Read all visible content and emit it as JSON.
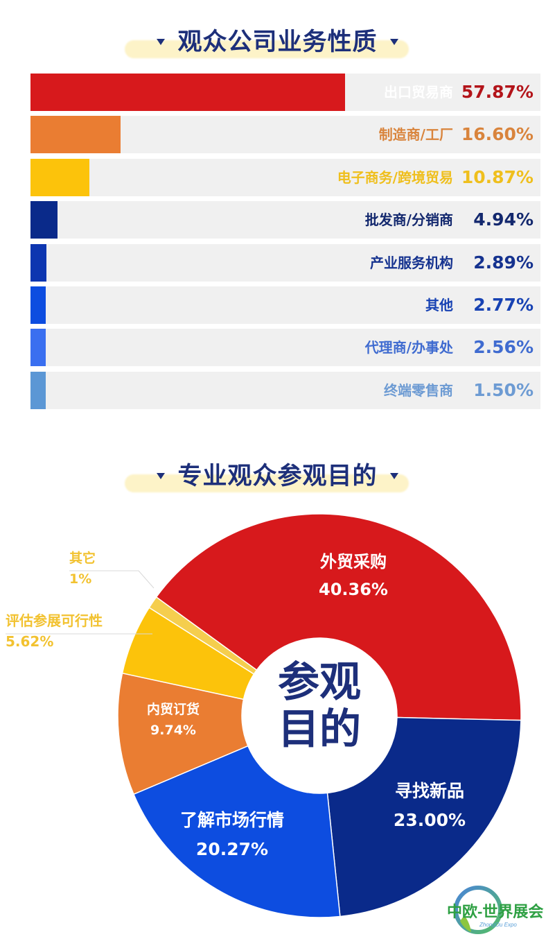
{
  "section1": {
    "title": "观众公司业务性质"
  },
  "section2": {
    "title": "专业观众参观目的",
    "center_text_line1": "参观",
    "center_text_line2": "目的"
  },
  "bars": [
    {
      "label": "出口贸易商",
      "value": "57.87%",
      "bar_color": "#d7191c",
      "label_color": "#ffffff",
      "value_color": "#b3141a"
    },
    {
      "label": "制造商/工厂",
      "value": "16.60%",
      "bar_color": "#ea7d32",
      "label_color": "#d9843c",
      "value_color": "#d9843c"
    },
    {
      "label": "电子商务/跨境贸易",
      "value": "10.87%",
      "bar_color": "#fcc30b",
      "label_color": "#efbf1d",
      "value_color": "#efbf1d"
    },
    {
      "label": "批发商/分销商",
      "value": "4.94%",
      "bar_color": "#0a2a8a",
      "label_color": "#13286e",
      "value_color": "#13286e"
    },
    {
      "label": "产业服务机构",
      "value": "2.89%",
      "bar_color": "#0d36b0",
      "label_color": "#15328f",
      "value_color": "#15328f"
    },
    {
      "label": "其他",
      "value": "2.77%",
      "bar_color": "#0d4de0",
      "label_color": "#1742b3",
      "value_color": "#1742b3"
    },
    {
      "label": "代理商/办事处",
      "value": "2.56%",
      "bar_color": "#3a6ff0",
      "label_color": "#3f6bd0",
      "value_color": "#3f6bd0"
    },
    {
      "label": "终端零售商",
      "value": "1.50%",
      "bar_color": "#5b97d5",
      "label_color": "#6d9bd3",
      "value_color": "#6d9bd3"
    }
  ],
  "pie": {
    "slices": [
      {
        "label": "外贸采购",
        "value": "40.36%",
        "color": "#d7191c"
      },
      {
        "label": "寻找新品",
        "value": "23.00%",
        "color": "#0a2a8a"
      },
      {
        "label": "了解市场行情",
        "value": "20.27%",
        "color": "#0d4de0"
      },
      {
        "label": "内贸订货",
        "value": "9.74%",
        "color": "#ea7d32"
      },
      {
        "label": "评估参展可行性",
        "value": "5.62%",
        "color": "#fcc30b"
      },
      {
        "label": "其它",
        "value": "1%",
        "color": "#f5ce4e"
      }
    ]
  },
  "logo": {
    "text": "中欧-世界展会",
    "subtext": "ZhongOu Expo"
  },
  "chart_data": [
    {
      "type": "bar",
      "title": "观众公司业务性质",
      "orientation": "horizontal",
      "categories": [
        "出口贸易商",
        "制造商/工厂",
        "电子商务/跨境贸易",
        "批发商/分销商",
        "产业服务机构",
        "其他",
        "代理商/办事处",
        "终端零售商"
      ],
      "values": [
        57.87,
        16.6,
        10.87,
        4.94,
        2.89,
        2.77,
        2.56,
        1.5
      ],
      "unit": "%",
      "xlabel": "",
      "ylabel": "",
      "grid": false
    },
    {
      "type": "pie",
      "subtype": "donut",
      "title": "专业观众参观目的",
      "center_label": "参观目的",
      "categories": [
        "外贸采购",
        "寻找新品",
        "了解市场行情",
        "内贸订货",
        "评估参展可行性",
        "其它"
      ],
      "values": [
        40.36,
        23.0,
        20.27,
        9.74,
        5.62,
        1
      ],
      "unit": "%"
    }
  ]
}
